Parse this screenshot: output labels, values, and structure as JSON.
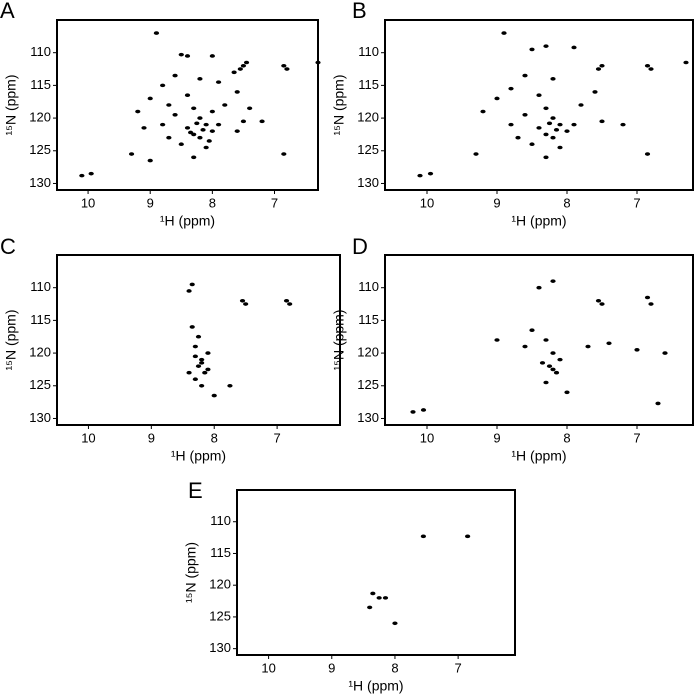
{
  "chart_data": [
    {
      "type": "scatter",
      "label": "A",
      "x_label": "¹H (ppm)",
      "y_label": "¹⁵N (ppm)",
      "color": "#000000",
      "xlim": [
        10.5,
        6.3
      ],
      "ylim": [
        131,
        105
      ],
      "xticks": [
        10,
        9,
        8,
        7
      ],
      "yticks": [
        110,
        115,
        120,
        125,
        130
      ],
      "x": [
        8.9,
        8.5,
        8.4,
        8.0,
        7.55,
        7.5,
        7.45,
        6.85,
        6.8,
        6.3,
        7.65,
        8.6,
        8.2,
        7.9,
        8.8,
        8.4,
        7.6,
        9.0,
        8.7,
        8.3,
        7.8,
        7.4,
        9.2,
        8.6,
        8.2,
        8.1,
        8.0,
        8.3,
        8.2,
        8.4,
        7.9,
        7.5,
        7.2,
        8.8,
        9.1,
        8.7,
        8.5,
        8.1,
        8.3,
        9.3,
        9.0,
        6.85,
        10.1,
        9.95,
        7.6,
        8.0,
        8.15,
        8.25,
        8.05,
        8.35
      ],
      "values": [
        107,
        110.3,
        110.5,
        110.5,
        112.5,
        112,
        111.5,
        112,
        112.5,
        111.5,
        113,
        113.5,
        114,
        114.5,
        115,
        116.5,
        116,
        117,
        118,
        118.5,
        118,
        118.5,
        119,
        119.5,
        120,
        121,
        122,
        122.5,
        123,
        121.5,
        121,
        120.5,
        120.5,
        121,
        121.5,
        123,
        124,
        124.5,
        126,
        125.5,
        126.5,
        125.5,
        128.8,
        128.5,
        122,
        119,
        121.8,
        120.8,
        123.5,
        122.2
      ]
    },
    {
      "type": "scatter",
      "label": "B",
      "x_label": "¹H (ppm)",
      "y_label": "¹⁵N (ppm)",
      "color": "#000000",
      "xlim": [
        10.6,
        6.2
      ],
      "ylim": [
        131,
        105
      ],
      "xticks": [
        10,
        9,
        8,
        7
      ],
      "yticks": [
        110,
        115,
        120,
        125,
        130
      ],
      "x": [
        8.9,
        8.5,
        8.3,
        7.9,
        7.55,
        7.5,
        6.85,
        6.8,
        6.3,
        8.6,
        8.2,
        8.8,
        8.4,
        7.6,
        9.0,
        8.3,
        7.8,
        9.2,
        8.6,
        8.2,
        8.1,
        8.0,
        8.3,
        8.2,
        8.4,
        7.9,
        7.5,
        7.2,
        8.8,
        8.7,
        8.5,
        8.1,
        8.3,
        9.3,
        6.85,
        10.1,
        9.95,
        8.15,
        8.25
      ],
      "values": [
        107,
        109.5,
        109,
        109.2,
        112.5,
        112,
        112,
        112.5,
        111.5,
        113.5,
        114,
        115.5,
        116.5,
        116,
        117,
        118.5,
        118,
        119,
        119.5,
        120,
        121,
        122,
        122.5,
        123,
        121.5,
        121,
        120.5,
        121,
        121,
        123,
        124,
        124.5,
        126,
        125.5,
        125.5,
        128.8,
        128.5,
        121.8,
        120.8
      ]
    },
    {
      "type": "scatter",
      "label": "C",
      "x_label": "¹H (ppm)",
      "y_label": "¹⁵N (ppm)",
      "color": "#000000",
      "xlim": [
        10.5,
        6.0
      ],
      "ylim": [
        131,
        105
      ],
      "xticks": [
        10,
        9,
        8,
        7
      ],
      "yticks": [
        110,
        115,
        120,
        125,
        130
      ],
      "x": [
        8.35,
        8.4,
        7.55,
        7.5,
        6.85,
        6.8,
        8.2,
        8.25,
        8.15,
        8.3,
        8.2,
        8.1,
        8.3,
        8.35,
        8.0,
        7.75,
        8.25,
        8.1,
        8.4,
        8.2,
        8.3
      ],
      "values": [
        109.5,
        110.5,
        112,
        112.5,
        112,
        112.5,
        121,
        122,
        123,
        124,
        125,
        120,
        119,
        116,
        126.5,
        125,
        117.5,
        122.5,
        123,
        121.5,
        120.5
      ]
    },
    {
      "type": "scatter",
      "label": "D",
      "x_label": "¹H (ppm)",
      "y_label": "¹⁵N (ppm)",
      "color": "#000000",
      "xlim": [
        10.6,
        6.2
      ],
      "ylim": [
        131,
        105
      ],
      "xticks": [
        10,
        9,
        8,
        7
      ],
      "yticks": [
        110,
        115,
        120,
        125,
        130
      ],
      "x": [
        8.4,
        8.2,
        7.55,
        7.5,
        6.85,
        6.8,
        8.5,
        8.3,
        8.2,
        8.1,
        8.25,
        8.15,
        8.3,
        8.0,
        7.7,
        7.4,
        7.0,
        6.6,
        9.0,
        8.6,
        6.7,
        10.2,
        10.05,
        8.35,
        8.2
      ],
      "values": [
        110,
        109,
        112,
        112.5,
        111.5,
        112.5,
        116.5,
        118,
        120,
        121,
        122,
        123,
        124.5,
        126,
        119,
        118.5,
        119.5,
        120,
        118,
        119,
        127.7,
        129,
        128.7,
        121.5,
        122.5
      ]
    },
    {
      "type": "scatter",
      "label": "E",
      "x_label": "¹H (ppm)",
      "y_label": "¹⁵N (ppm)",
      "color": "#000000",
      "xlim": [
        10.5,
        6.1
      ],
      "ylim": [
        131,
        105
      ],
      "xticks": [
        10,
        9,
        8,
        7
      ],
      "yticks": [
        110,
        115,
        120,
        125,
        130
      ],
      "x": [
        7.55,
        6.85,
        8.35,
        8.25,
        8.15,
        8.0,
        8.4
      ],
      "values": [
        112.3,
        112.3,
        121.3,
        122,
        122,
        126,
        123.5
      ]
    }
  ]
}
